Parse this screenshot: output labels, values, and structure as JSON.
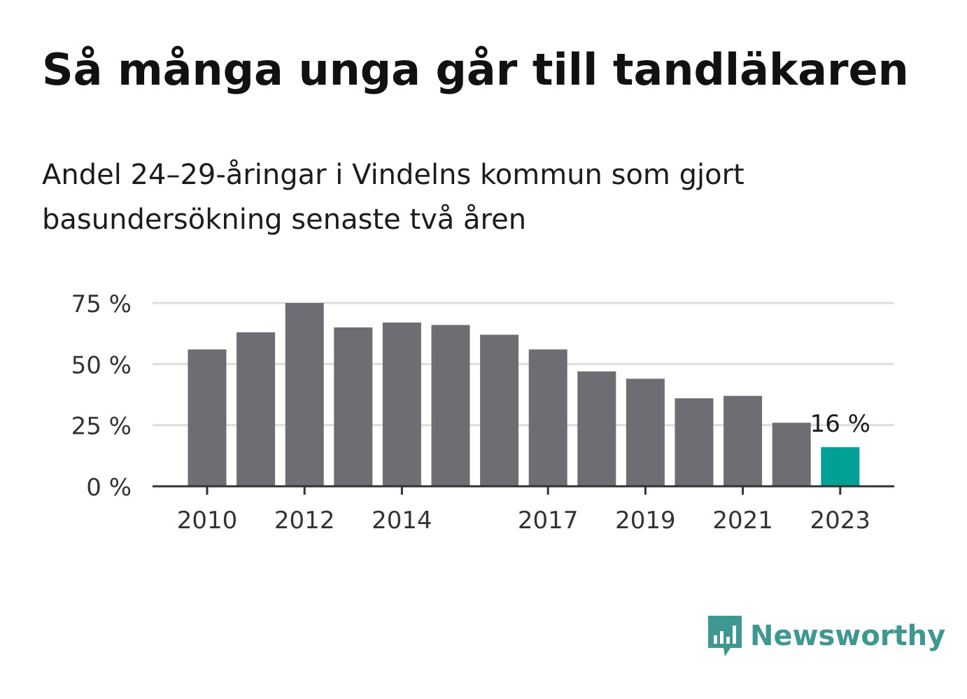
{
  "title": "Så många unga går till tandläkaren",
  "subtitle": "Andel 24–29-åringar i Vindelns kommun som gjort basundersökning senaste två åren",
  "brand": {
    "name": "Newsworthy",
    "icon": "newsworthy-logo-icon",
    "color": "#3f9792"
  },
  "colors": {
    "bar": "#6e6d73",
    "highlight": "#00a096",
    "grid": "#dddddd",
    "axis": "#333333",
    "tick_text": "#333333"
  },
  "chart_data": {
    "type": "bar",
    "categories": [
      "2010",
      "2011",
      "2012",
      "2013",
      "2014",
      "2015",
      "2016",
      "2017",
      "2018",
      "2019",
      "2020",
      "2021",
      "2022",
      "2023"
    ],
    "values": [
      56,
      63,
      75,
      65,
      67,
      66,
      62,
      56,
      47,
      44,
      36,
      37,
      26,
      16
    ],
    "x_tick_labels": [
      "2010",
      "2012",
      "2014",
      "2017",
      "2019",
      "2021",
      "2023"
    ],
    "y_ticks": [
      0,
      25,
      50,
      75
    ],
    "y_tick_labels": [
      "0 %",
      "25 %",
      "50 %",
      "75 %"
    ],
    "ylim": [
      0,
      75
    ],
    "grid": true,
    "highlight": {
      "category": "2023",
      "label": "16 %"
    }
  }
}
